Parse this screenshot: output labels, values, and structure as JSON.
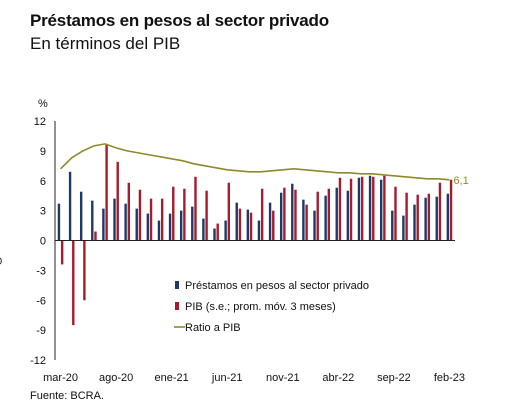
{
  "colors": {
    "prestamos": "#1f3864",
    "pib": "#a61c2e",
    "ratio": "#8f8a2a",
    "axis": "#222222"
  },
  "chart_data": {
    "type": "bar",
    "title": "Préstamos en pesos al sector privado",
    "subtitle": "En términos del PIB",
    "ylabel": "%",
    "ylim": [
      -12,
      12
    ],
    "yticks": [
      "12",
      "9",
      "6",
      "3",
      "0",
      "-3",
      "-6",
      "-9",
      "-12"
    ],
    "ytick_values": [
      12,
      9,
      6,
      3,
      0,
      -3,
      -6,
      -9,
      -12
    ],
    "left_edge_label": "0",
    "xtick_labels": [
      "mar-20",
      "ago-20",
      "ene-21",
      "jun-21",
      "nov-21",
      "abr-22",
      "sep-22",
      "feb-23"
    ],
    "xtick_index": [
      0,
      5,
      10,
      15,
      20,
      25,
      30,
      35
    ],
    "categories": [
      "mar-20",
      "abr-20",
      "may-20",
      "jun-20",
      "jul-20",
      "ago-20",
      "sep-20",
      "oct-20",
      "nov-20",
      "dic-20",
      "ene-21",
      "feb-21",
      "mar-21",
      "abr-21",
      "may-21",
      "jun-21",
      "jul-21",
      "ago-21",
      "sep-21",
      "oct-21",
      "nov-21",
      "dic-21",
      "ene-22",
      "feb-22",
      "mar-22",
      "abr-22",
      "may-22",
      "jun-22",
      "jul-22",
      "ago-22",
      "sep-22",
      "oct-22",
      "nov-22",
      "dic-22",
      "ene-23",
      "feb-23"
    ],
    "series": [
      {
        "name": "Préstamos en pesos al sector privado",
        "type": "bar",
        "values": [
          3.7,
          6.9,
          4.9,
          4.0,
          3.2,
          4.2,
          3.7,
          3.2,
          2.7,
          2.0,
          2.7,
          3.0,
          3.4,
          2.2,
          1.2,
          2.0,
          3.8,
          3.1,
          2.0,
          3.8,
          4.8,
          5.7,
          4.1,
          3.0,
          4.5,
          5.3,
          5.0,
          6.3,
          6.5,
          6.1,
          3.0,
          2.5,
          3.6,
          4.3,
          4.4,
          4.7
        ]
      },
      {
        "name": "PIB (s.e.; prom. móv. 3 meses)",
        "type": "bar",
        "values": [
          -2.4,
          -8.5,
          -6.0,
          0.9,
          9.7,
          7.9,
          5.8,
          5.1,
          4.2,
          4.2,
          5.4,
          5.2,
          6.4,
          5.0,
          1.7,
          5.8,
          3.2,
          2.8,
          5.2,
          3.0,
          5.3,
          5.1,
          3.6,
          4.9,
          5.2,
          6.3,
          6.2,
          6.4,
          6.4,
          6.5,
          5.4,
          4.8,
          4.6,
          4.7,
          5.8,
          6.1
        ]
      },
      {
        "name": "Ratio a PIB",
        "type": "line",
        "values": [
          7.2,
          8.3,
          9.0,
          9.5,
          9.7,
          9.3,
          9.0,
          8.8,
          8.6,
          8.4,
          8.2,
          8.0,
          7.7,
          7.5,
          7.3,
          7.1,
          7.0,
          6.9,
          6.9,
          7.0,
          7.1,
          7.2,
          7.1,
          7.0,
          6.9,
          6.8,
          6.8,
          6.7,
          6.7,
          6.6,
          6.5,
          6.4,
          6.3,
          6.2,
          6.2,
          6.1
        ]
      }
    ],
    "end_label": "6,1",
    "legend": {
      "placement": "center-right",
      "items": [
        {
          "label": "Préstamos en pesos al sector privado",
          "kind": "bar"
        },
        {
          "label": "PIB (s.e.; prom. móv. 3 meses)",
          "kind": "bar"
        },
        {
          "label": "Ratio a PIB",
          "kind": "line"
        }
      ]
    },
    "source": "Fuente: BCRA."
  }
}
